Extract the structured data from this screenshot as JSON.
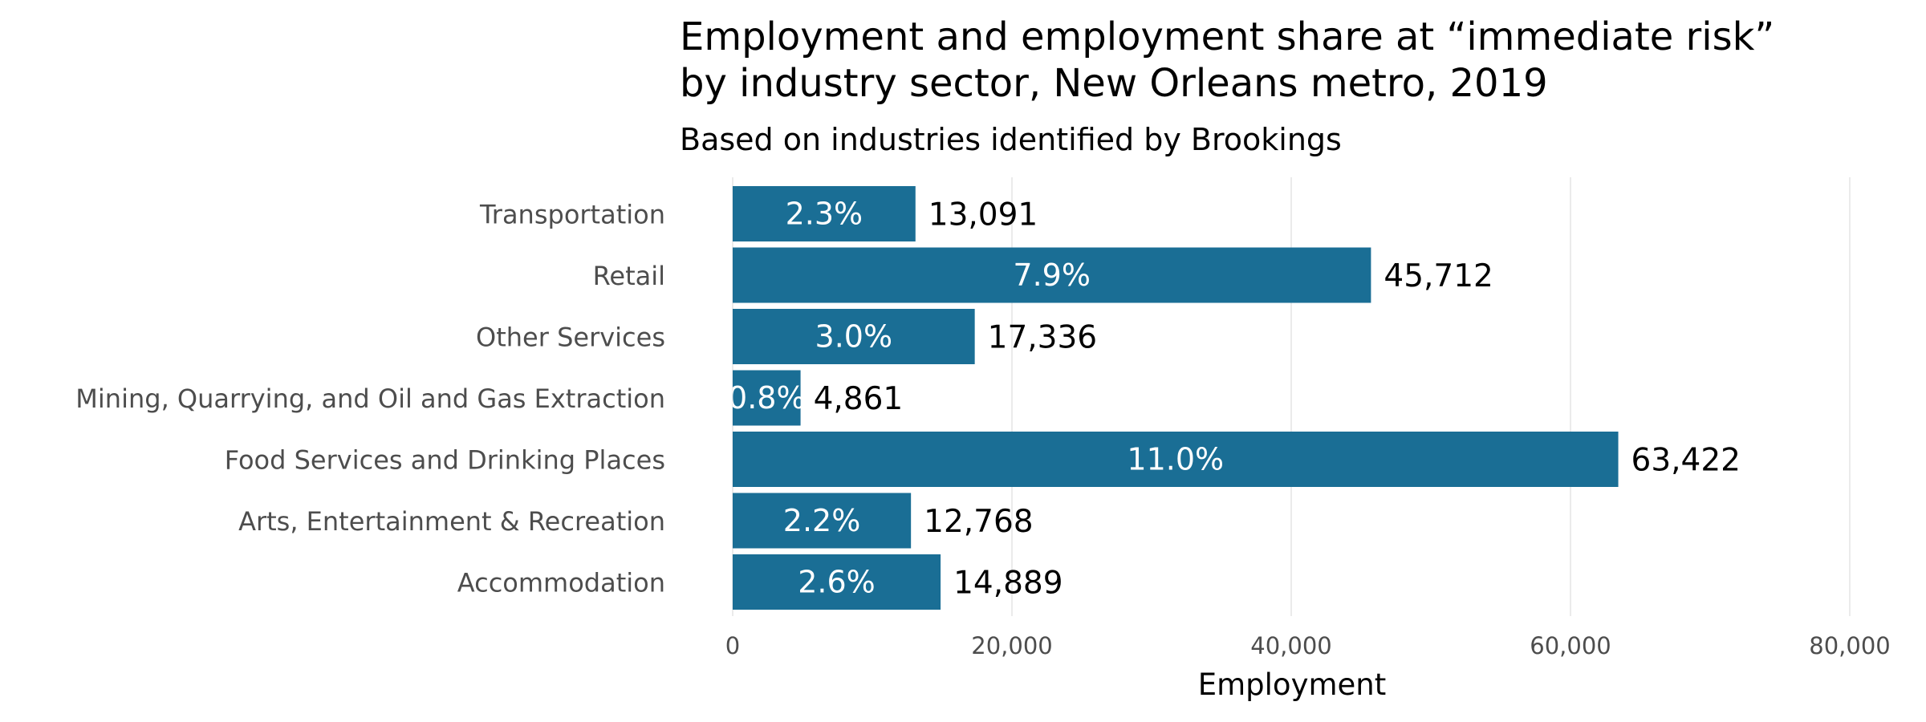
{
  "chart_data": {
    "type": "bar",
    "orientation": "horizontal",
    "title": "Employment and employment share at “immediate risk” by industry sector, New Orleans metro, 2019",
    "title_lines": [
      "Employment and employment share at “immediate risk”",
      "by industry sector, New Orleans metro, 2019"
    ],
    "subtitle": "Based on industries identified by Brookings",
    "xlabel": "Employment",
    "ylabel": "",
    "xlim": [
      0,
      80000
    ],
    "xticks": [
      0,
      20000,
      40000,
      60000,
      80000
    ],
    "xtick_labels": [
      "0",
      "20,000",
      "40,000",
      "60,000",
      "80,000"
    ],
    "grid": true,
    "legend": "none",
    "bar_color": "#1a6e95",
    "categories": [
      "Transportation",
      "Retail",
      "Other Services",
      "Mining, Quarrying, and Oil and Gas Extraction",
      "Food Services and Drinking Places",
      "Arts, Entertainment & Recreation",
      "Accommodation"
    ],
    "values": [
      13091,
      45712,
      17336,
      4861,
      63422,
      12768,
      14889
    ],
    "value_labels": [
      "13,091",
      "45,712",
      "17,336",
      "4,861",
      "63,422",
      "12,768",
      "14,889"
    ],
    "share_labels": [
      "2.3%",
      "7.9%",
      "3.0%",
      "0.8%",
      "11.0%",
      "2.2%",
      "2.6%"
    ],
    "shares_percent": [
      2.3,
      7.9,
      3.0,
      0.8,
      11.0,
      2.2,
      2.6
    ]
  }
}
